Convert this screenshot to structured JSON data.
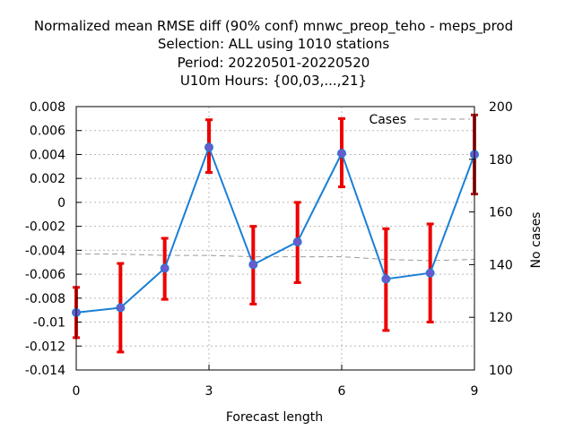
{
  "chart_data": {
    "type": "line",
    "title_lines": [
      "Normalized mean RMSE diff (90% conf) mnwc_preop_teho - meps_prod",
      "Selection: ALL using  1010 stations",
      "Period: 20220501-20220520",
      "U10m   Hours: {00,03,...,21}"
    ],
    "xlabel": "Forecast length",
    "ylabel": "",
    "y2label": "No cases",
    "xlim": [
      0,
      9
    ],
    "ylim": [
      -0.014,
      0.008
    ],
    "y2lim": [
      100,
      200
    ],
    "x_ticks": [
      0,
      3,
      6,
      9
    ],
    "y_ticks": [
      "0.008",
      "0.006",
      "0.004",
      "0.002",
      "0",
      "-0.002",
      "-0.004",
      "-0.006",
      "-0.008",
      "-0.01",
      "-0.012",
      "-0.014"
    ],
    "y2_ticks": [
      "200",
      "180",
      "160",
      "140",
      "120",
      "100"
    ],
    "grid": true,
    "legend_position": "top-right",
    "colors": {
      "line": "#1a7fd6",
      "marker": "#6a5acd",
      "errorbar": "#ee0000",
      "errorbar_last": "#b01818",
      "cases": "#999999",
      "grid": "#b8b8b8"
    },
    "series": [
      {
        "x": [
          0,
          1,
          2,
          3,
          4,
          5,
          6,
          7,
          8,
          9
        ],
        "y": [
          -0.0092,
          -0.0088,
          -0.0055,
          0.0046,
          -0.0052,
          -0.0033,
          0.0041,
          -0.0064,
          -0.0059,
          0.004
        ],
        "err_low": [
          -0.0113,
          -0.0125,
          -0.0081,
          0.0025,
          -0.0085,
          -0.0067,
          0.0013,
          -0.0107,
          -0.01,
          0.0007
        ],
        "err_high": [
          -0.0071,
          -0.0051,
          -0.003,
          0.0069,
          -0.002,
          0.0,
          0.007,
          -0.0022,
          -0.0018,
          0.0073
        ]
      },
      {
        "name": "Cases",
        "axis": "y2",
        "x": [
          0,
          1,
          2,
          3,
          4,
          5,
          6,
          7,
          8,
          9
        ],
        "y": [
          144,
          144,
          143.5,
          143.5,
          143,
          143,
          143,
          142,
          141.5,
          142
        ]
      }
    ]
  }
}
